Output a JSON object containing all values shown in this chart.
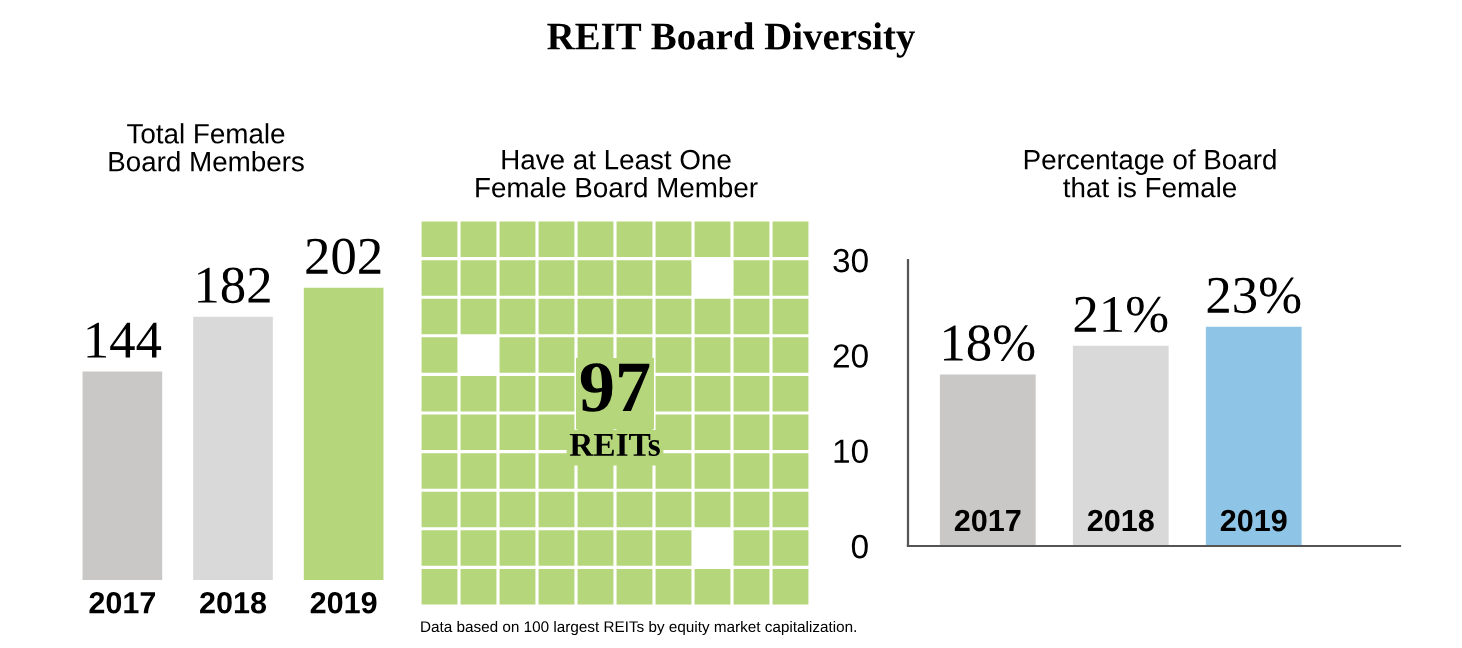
{
  "chart_data": [
    {
      "type": "other",
      "title": "REIT Board Diversity"
    },
    {
      "type": "bar",
      "title": "Total Female\nBoard Members",
      "categories": [
        "2017",
        "2018",
        "2019"
      ],
      "values": [
        144,
        182,
        202
      ],
      "colors": [
        "#c9c8c6",
        "#d9d9d9",
        "#b5d67b"
      ],
      "data_labels": true,
      "tick_labels": "x"
    },
    {
      "type": "other",
      "title": "Have at Least One\nFemale Board Member",
      "annotations": [
        "97",
        "REITs",
        "Data based on 100 largest REITs by equity market capitalization."
      ]
    },
    {
      "type": "bar",
      "title": "Percentage of Board\nthat is Female",
      "categories": [
        "2017",
        "2018",
        "2019"
      ],
      "values": [
        18,
        21,
        23
      ],
      "colors": [
        "#c9c8c6",
        "#d9d9d9",
        "#8ec5e6"
      ],
      "value_labels": [
        "18%",
        "21%",
        "23%"
      ],
      "ylim": [
        0,
        30
      ],
      "yticks": [
        0,
        10,
        20,
        30
      ]
    }
  ]
}
